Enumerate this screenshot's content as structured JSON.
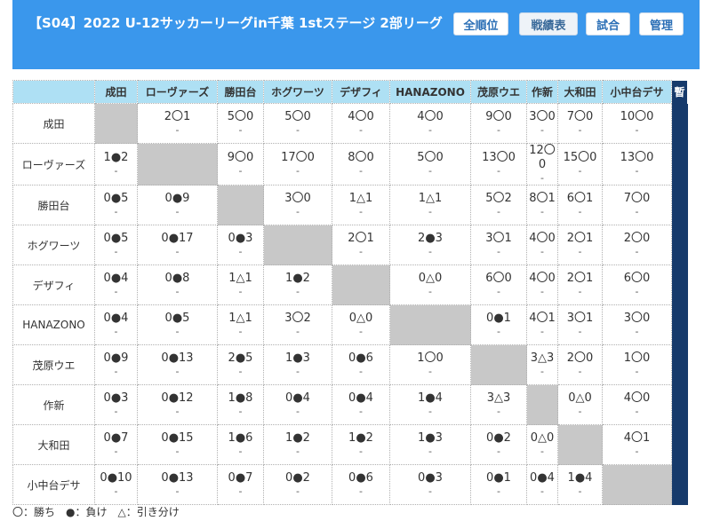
{
  "header": {
    "title": "【S04】2022 U-12サッカーリーグin千葉 1stステージ 2部リーグ",
    "buttons": [
      {
        "label": "全順位",
        "active": false
      },
      {
        "label": "戦績表",
        "active": true
      },
      {
        "label": "試合",
        "active": false
      },
      {
        "label": "管理",
        "active": false
      }
    ]
  },
  "table": {
    "columns": [
      "成田",
      "ローヴァーズ",
      "勝田台",
      "ホグワーツ",
      "デザフィ",
      "HANAZONO",
      "茂原ウエ",
      "作新",
      "大和田",
      "小中台デサ"
    ],
    "extra_header": "暫",
    "rows": [
      {
        "team": "成田",
        "cells": [
          null,
          "2〇1",
          "5〇0",
          "5〇0",
          "4〇0",
          "4〇0",
          "9〇0",
          "3〇0",
          "7〇0",
          "10〇0"
        ]
      },
      {
        "team": "ローヴァーズ",
        "cells": [
          "1●2",
          null,
          "9〇0",
          "17〇0",
          "8〇0",
          "5〇0",
          "13〇0",
          "12〇0",
          "15〇0",
          "13〇0"
        ]
      },
      {
        "team": "勝田台",
        "cells": [
          "0●5",
          "0●9",
          null,
          "3〇0",
          "1△1",
          "1△1",
          "5〇2",
          "8〇1",
          "6〇1",
          "7〇0"
        ]
      },
      {
        "team": "ホグワーツ",
        "cells": [
          "0●5",
          "0●17",
          "0●3",
          null,
          "2〇1",
          "2●3",
          "3〇1",
          "4〇0",
          "2〇1",
          "2〇0"
        ]
      },
      {
        "team": "デザフィ",
        "cells": [
          "0●4",
          "0●8",
          "1△1",
          "1●2",
          null,
          "0△0",
          "6〇0",
          "4〇0",
          "2〇1",
          "6〇0"
        ]
      },
      {
        "team": "HANAZONO",
        "cells": [
          "0●4",
          "0●5",
          "1△1",
          "3〇2",
          "0△0",
          null,
          "0●1",
          "4〇1",
          "3〇1",
          "3〇0"
        ]
      },
      {
        "team": "茂原ウエ",
        "cells": [
          "0●9",
          "0●13",
          "2●5",
          "1●3",
          "0●6",
          "1〇0",
          null,
          "3△3",
          "2〇0",
          "1〇0"
        ]
      },
      {
        "team": "作新",
        "cells": [
          "0●3",
          "0●12",
          "1●8",
          "0●4",
          "0●4",
          "1●4",
          "3△3",
          null,
          "0△0",
          "4〇0"
        ]
      },
      {
        "team": "大和田",
        "cells": [
          "0●7",
          "0●15",
          "1●6",
          "1●2",
          "1●2",
          "1●3",
          "0●2",
          "0△0",
          null,
          "4〇1"
        ]
      },
      {
        "team": "小中台デサ",
        "cells": [
          "0●10",
          "0●13",
          "0●7",
          "0●2",
          "0●6",
          "0●3",
          "0●1",
          "0●4",
          "1●4",
          null
        ]
      }
    ],
    "sub_mark": "-"
  },
  "legend": "〇：勝ち　●：負け　△：引き分け",
  "colors": {
    "header_bg": "#3a97ec",
    "thead_bg": "#aee0f4",
    "self_cell": "#c8c8c8",
    "extra_col": "#163a6b"
  }
}
